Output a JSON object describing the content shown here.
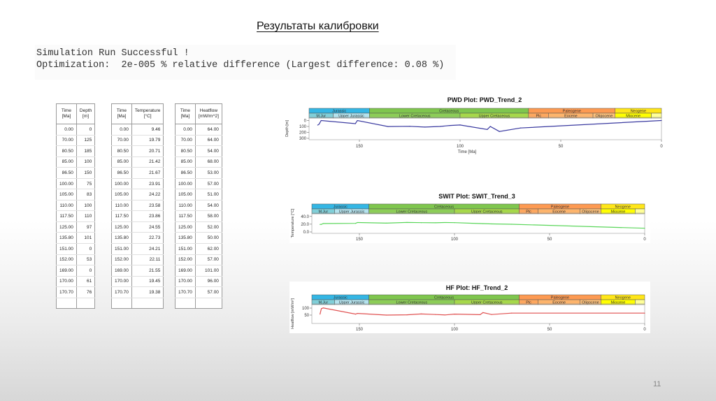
{
  "slide": {
    "title": "Результаты калибровки",
    "page_number": "11"
  },
  "console": {
    "line1": "Simulation Run Successful !",
    "line2": "Optimization:  2e-005 % relative difference (Largest difference: 0.08 %)"
  },
  "tables": [
    {
      "headers": [
        "Time\n[Ma]",
        "Depth\n[m]"
      ],
      "rows": [
        [
          "0.00",
          "0"
        ],
        [
          "70.00",
          "125"
        ],
        [
          "80.50",
          "185"
        ],
        [
          "85.00",
          "100"
        ],
        [
          "86.50",
          "150"
        ],
        [
          "100.00",
          "75"
        ],
        [
          "105.00",
          "83"
        ],
        [
          "110.00",
          "100"
        ],
        [
          "117.50",
          "110"
        ],
        [
          "125.00",
          "97"
        ],
        [
          "135.80",
          "101"
        ],
        [
          "151.00",
          "0"
        ],
        [
          "152.00",
          "53"
        ],
        [
          "169.00",
          "0"
        ],
        [
          "170.00",
          "61"
        ],
        [
          "170.70",
          "76"
        ]
      ]
    },
    {
      "headers": [
        "Time\n[Ma]",
        "Temperature\n[°C]"
      ],
      "rows": [
        [
          "0.00",
          "9.46"
        ],
        [
          "70.00",
          "19.79"
        ],
        [
          "80.50",
          "20.71"
        ],
        [
          "85.00",
          "21.42"
        ],
        [
          "86.50",
          "21.67"
        ],
        [
          "100.00",
          "23.91"
        ],
        [
          "105.00",
          "24.22"
        ],
        [
          "110.00",
          "23.58"
        ],
        [
          "117.50",
          "23.86"
        ],
        [
          "125.00",
          "24.55"
        ],
        [
          "135.80",
          "22.73"
        ],
        [
          "151.00",
          "24.21"
        ],
        [
          "152.00",
          "22.11"
        ],
        [
          "169.00",
          "21.55"
        ],
        [
          "170.00",
          "19.45"
        ],
        [
          "170.70",
          "19.38"
        ]
      ]
    },
    {
      "headers": [
        "Time\n[Ma]",
        "Heatflow\n[mW/m^2]"
      ],
      "rows": [
        [
          "0.00",
          "64.00"
        ],
        [
          "70.00",
          "64.00"
        ],
        [
          "80.50",
          "54.00"
        ],
        [
          "85.00",
          "68.00"
        ],
        [
          "86.50",
          "53.00"
        ],
        [
          "100.00",
          "57.00"
        ],
        [
          "105.00",
          "51.00"
        ],
        [
          "110.00",
          "54.00"
        ],
        [
          "117.50",
          "58.00"
        ],
        [
          "125.00",
          "52.00"
        ],
        [
          "135.80",
          "50.00"
        ],
        [
          "151.00",
          "62.00"
        ],
        [
          "152.00",
          "57.00"
        ],
        [
          "169.00",
          "101.00"
        ],
        [
          "170.00",
          "96.00"
        ],
        [
          "170.70",
          "57.00"
        ]
      ]
    }
  ],
  "chart_data": [
    {
      "type": "line",
      "title": "PWD Plot: PWD_Trend_2",
      "xlabel": "Time [Ma]",
      "ylabel": "Depth [m]",
      "xlim": [
        175,
        0
      ],
      "ylim": [
        300,
        -30
      ],
      "x_ticks": [
        "150",
        "100",
        "50",
        "0"
      ],
      "y_ticks": [
        "0",
        "100",
        "200",
        "300"
      ],
      "color": "#3a3aa0",
      "x": [
        170.7,
        170,
        169,
        152,
        151,
        135.8,
        125,
        117.5,
        110,
        105,
        100,
        86.5,
        85,
        80.5,
        70,
        0
      ],
      "y": [
        76,
        61,
        0,
        53,
        0,
        101,
        97,
        110,
        100,
        83,
        75,
        150,
        100,
        185,
        125,
        0
      ]
    },
    {
      "type": "line",
      "title": "SWIT Plot: SWIT_Trend_3",
      "xlabel": "",
      "ylabel": "Temperature [°C]",
      "xlim": [
        175,
        0
      ],
      "ylim": [
        0,
        45
      ],
      "x_ticks": [
        "150",
        "100",
        "50",
        "0"
      ],
      "y_ticks": [
        "0.0",
        "20.0",
        "40.0"
      ],
      "color": "#5ad65a",
      "x": [
        170.7,
        170,
        169,
        152,
        151,
        135.8,
        125,
        117.5,
        110,
        105,
        100,
        86.5,
        85,
        80.5,
        70,
        0
      ],
      "y": [
        19.38,
        19.45,
        21.55,
        22.11,
        24.21,
        22.73,
        24.55,
        23.86,
        23.58,
        24.22,
        23.91,
        21.67,
        21.42,
        20.71,
        19.79,
        9.46
      ]
    },
    {
      "type": "line",
      "title": "HF Plot: HF_Trend_2",
      "xlabel": "",
      "ylabel": "Heatflow [mW/m²]",
      "xlim": [
        175,
        0
      ],
      "ylim": [
        0,
        120
      ],
      "x_ticks": [
        "150",
        "100",
        "50",
        "0"
      ],
      "y_ticks": [
        "50",
        "100"
      ],
      "color": "#e05050",
      "x": [
        170.7,
        170,
        169,
        152,
        151,
        135.8,
        125,
        117.5,
        110,
        105,
        100,
        86.5,
        85,
        80.5,
        70,
        0
      ],
      "y": [
        57,
        96,
        101,
        57,
        62,
        50,
        52,
        58,
        54,
        51,
        57,
        53,
        68,
        54,
        64,
        64
      ]
    }
  ],
  "strat": {
    "periods": [
      {
        "label": "Jurassic",
        "from": 175,
        "to": 145,
        "color": "#34b6e4"
      },
      {
        "label": "Cretaceous",
        "from": 145,
        "to": 66,
        "color": "#7fc64e"
      },
      {
        "label": "Paleogene",
        "from": 66,
        "to": 23,
        "color": "#fd9a52"
      },
      {
        "label": "Neogene",
        "from": 23,
        "to": 0,
        "color": "#ffe619"
      }
    ],
    "epochs": [
      {
        "label": "M.Jur",
        "from": 175,
        "to": 163,
        "color": "#80cfd8"
      },
      {
        "label": "Upper Jurassic",
        "from": 163,
        "to": 145,
        "color": "#b3e3ee"
      },
      {
        "label": "Lower Cretaceous",
        "from": 145,
        "to": 100,
        "color": "#8ccd57"
      },
      {
        "label": "Upper Cretaceous",
        "from": 100,
        "to": 66,
        "color": "#a6d84a"
      },
      {
        "label": "Plc",
        "from": 66,
        "to": 56,
        "color": "#fda75f"
      },
      {
        "label": "Eocene",
        "from": 56,
        "to": 34,
        "color": "#fdb46c"
      },
      {
        "label": "Oligocene",
        "from": 34,
        "to": 23,
        "color": "#fdc07a"
      },
      {
        "label": "Miocene",
        "from": 23,
        "to": 5,
        "color": "#ffff00"
      },
      {
        "label": "",
        "from": 5,
        "to": 0,
        "color": "#ffff99"
      }
    ]
  }
}
